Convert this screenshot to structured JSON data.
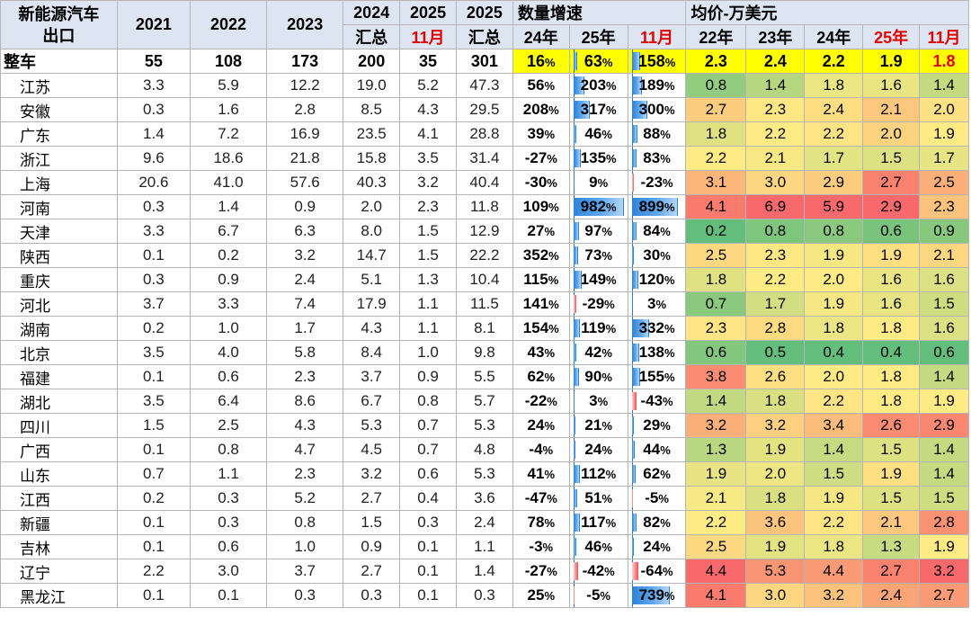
{
  "header": {
    "title_line1": "新能源汽车",
    "title_line2": "出口",
    "y2021": "2021",
    "y2022": "2022",
    "y2023": "2023",
    "y2024": "2024",
    "y2024_sub": "汇总",
    "y2025m": "2025",
    "y2025m_sub": "11月",
    "y2025t": "2025",
    "y2025t_sub": "汇总",
    "growth_group": "数量增速",
    "g24": "24年",
    "g25": "25年",
    "gm": "11月",
    "price_group": "均价-万美元",
    "p22": "22年",
    "p23": "23年",
    "p24": "24年",
    "p25": "25年",
    "pm": "11月"
  },
  "total": {
    "name": "整车",
    "v2021": "55",
    "v2022": "108",
    "v2023": "173",
    "v2024": "200",
    "v2025m": "35",
    "v2025t": "301",
    "g24": "16%",
    "g25": "63%",
    "gm": "158%",
    "p22": "2.3",
    "p23": "2.4",
    "p24": "2.2",
    "p25": "1.9",
    "pm": "1.8"
  },
  "rows": [
    {
      "name": "江苏",
      "v2021": "3.3",
      "v2022": "5.9",
      "v2023": "12.2",
      "v2024": "19.0",
      "v2025m": "5.2",
      "v2025t": "47.3",
      "g24": "56%",
      "g25": "203%",
      "gm": "189%",
      "p22": "0.8",
      "p23": "1.4",
      "p24": "1.8",
      "p25": "1.6",
      "pm": "1.4"
    },
    {
      "name": "安徽",
      "v2021": "0.3",
      "v2022": "1.6",
      "v2023": "2.8",
      "v2024": "8.5",
      "v2025m": "4.3",
      "v2025t": "29.5",
      "g24": "208%",
      "g25": "317%",
      "gm": "300%",
      "p22": "2.7",
      "p23": "2.3",
      "p24": "2.4",
      "p25": "2.1",
      "pm": "2.0"
    },
    {
      "name": "广东",
      "v2021": "1.4",
      "v2022": "7.2",
      "v2023": "16.9",
      "v2024": "23.5",
      "v2025m": "4.1",
      "v2025t": "28.8",
      "g24": "39%",
      "g25": "46%",
      "gm": "88%",
      "p22": "1.8",
      "p23": "2.2",
      "p24": "2.2",
      "p25": "2.0",
      "pm": "1.9"
    },
    {
      "name": "浙江",
      "v2021": "9.6",
      "v2022": "18.6",
      "v2023": "21.8",
      "v2024": "15.8",
      "v2025m": "3.5",
      "v2025t": "31.4",
      "g24": "-27%",
      "g25": "135%",
      "gm": "83%",
      "p22": "2.2",
      "p23": "2.1",
      "p24": "1.7",
      "p25": "1.5",
      "pm": "1.7"
    },
    {
      "name": "上海",
      "v2021": "20.6",
      "v2022": "41.0",
      "v2023": "57.6",
      "v2024": "40.3",
      "v2025m": "3.2",
      "v2025t": "40.4",
      "g24": "-30%",
      "g25": "9%",
      "gm": "-23%",
      "p22": "3.1",
      "p23": "3.0",
      "p24": "2.9",
      "p25": "2.7",
      "pm": "2.5"
    },
    {
      "name": "河南",
      "v2021": "0.3",
      "v2022": "1.4",
      "v2023": "0.9",
      "v2024": "2.0",
      "v2025m": "2.3",
      "v2025t": "11.8",
      "g24": "109%",
      "g25": "982%",
      "gm": "899%",
      "p22": "4.1",
      "p23": "6.9",
      "p24": "5.9",
      "p25": "2.9",
      "pm": "2.3"
    },
    {
      "name": "天津",
      "v2021": "3.3",
      "v2022": "6.7",
      "v2023": "6.3",
      "v2024": "8.0",
      "v2025m": "1.5",
      "v2025t": "12.9",
      "g24": "27%",
      "g25": "97%",
      "gm": "84%",
      "p22": "0.2",
      "p23": "0.8",
      "p24": "0.8",
      "p25": "0.6",
      "pm": "0.9"
    },
    {
      "name": "陕西",
      "v2021": "0.1",
      "v2022": "0.2",
      "v2023": "3.2",
      "v2024": "14.7",
      "v2025m": "1.5",
      "v2025t": "22.2",
      "g24": "352%",
      "g25": "73%",
      "gm": "30%",
      "p22": "2.5",
      "p23": "2.3",
      "p24": "1.9",
      "p25": "1.9",
      "pm": "2.1"
    },
    {
      "name": "重庆",
      "v2021": "0.3",
      "v2022": "0.9",
      "v2023": "2.4",
      "v2024": "5.1",
      "v2025m": "1.3",
      "v2025t": "10.4",
      "g24": "115%",
      "g25": "149%",
      "gm": "120%",
      "p22": "1.8",
      "p23": "2.2",
      "p24": "2.0",
      "p25": "1.6",
      "pm": "1.6"
    },
    {
      "name": "河北",
      "v2021": "3.7",
      "v2022": "3.3",
      "v2023": "7.4",
      "v2024": "17.9",
      "v2025m": "1.1",
      "v2025t": "11.5",
      "g24": "141%",
      "g25": "-29%",
      "gm": "3%",
      "p22": "0.7",
      "p23": "1.7",
      "p24": "1.9",
      "p25": "1.6",
      "pm": "1.5"
    },
    {
      "name": "湖南",
      "v2021": "0.2",
      "v2022": "1.0",
      "v2023": "1.7",
      "v2024": "4.3",
      "v2025m": "1.1",
      "v2025t": "8.1",
      "g24": "154%",
      "g25": "119%",
      "gm": "332%",
      "p22": "2.3",
      "p23": "2.8",
      "p24": "1.8",
      "p25": "1.8",
      "pm": "1.6"
    },
    {
      "name": "北京",
      "v2021": "3.5",
      "v2022": "4.0",
      "v2023": "5.8",
      "v2024": "8.4",
      "v2025m": "1.0",
      "v2025t": "9.8",
      "g24": "43%",
      "g25": "42%",
      "gm": "138%",
      "p22": "0.6",
      "p23": "0.5",
      "p24": "0.4",
      "p25": "0.4",
      "pm": "0.6"
    },
    {
      "name": "福建",
      "v2021": "0.1",
      "v2022": "0.6",
      "v2023": "2.3",
      "v2024": "3.7",
      "v2025m": "0.9",
      "v2025t": "5.5",
      "g24": "62%",
      "g25": "90%",
      "gm": "155%",
      "p22": "3.8",
      "p23": "2.6",
      "p24": "2.0",
      "p25": "1.8",
      "pm": "1.4"
    },
    {
      "name": "湖北",
      "v2021": "3.5",
      "v2022": "6.4",
      "v2023": "8.6",
      "v2024": "6.7",
      "v2025m": "0.8",
      "v2025t": "5.7",
      "g24": "-22%",
      "g25": "3%",
      "gm": "-43%",
      "p22": "1.4",
      "p23": "1.8",
      "p24": "2.2",
      "p25": "1.8",
      "pm": "1.9"
    },
    {
      "name": "四川",
      "v2021": "1.5",
      "v2022": "2.5",
      "v2023": "4.3",
      "v2024": "5.3",
      "v2025m": "0.7",
      "v2025t": "5.3",
      "g24": "24%",
      "g25": "21%",
      "gm": "29%",
      "p22": "3.2",
      "p23": "3.2",
      "p24": "3.4",
      "p25": "2.6",
      "pm": "2.9"
    },
    {
      "name": "广西",
      "v2021": "0.1",
      "v2022": "0.8",
      "v2023": "4.7",
      "v2024": "4.5",
      "v2025m": "0.7",
      "v2025t": "4.8",
      "g24": "-4%",
      "g25": "24%",
      "gm": "44%",
      "p22": "1.3",
      "p23": "1.9",
      "p24": "1.4",
      "p25": "1.5",
      "pm": "1.4"
    },
    {
      "name": "山东",
      "v2021": "0.7",
      "v2022": "1.1",
      "v2023": "2.3",
      "v2024": "3.2",
      "v2025m": "0.6",
      "v2025t": "5.3",
      "g24": "41%",
      "g25": "112%",
      "gm": "62%",
      "p22": "1.9",
      "p23": "2.0",
      "p24": "1.5",
      "p25": "1.9",
      "pm": "1.4"
    },
    {
      "name": "江西",
      "v2021": "0.2",
      "v2022": "0.3",
      "v2023": "5.2",
      "v2024": "2.7",
      "v2025m": "0.4",
      "v2025t": "3.6",
      "g24": "-47%",
      "g25": "51%",
      "gm": "-5%",
      "p22": "2.1",
      "p23": "1.8",
      "p24": "1.9",
      "p25": "1.5",
      "pm": "1.5"
    },
    {
      "name": "新疆",
      "v2021": "0.1",
      "v2022": "0.3",
      "v2023": "0.8",
      "v2024": "1.5",
      "v2025m": "0.3",
      "v2025t": "2.4",
      "g24": "78%",
      "g25": "117%",
      "gm": "82%",
      "p22": "2.2",
      "p23": "3.6",
      "p24": "2.2",
      "p25": "2.1",
      "pm": "2.8"
    },
    {
      "name": "吉林",
      "v2021": "0.1",
      "v2022": "0.6",
      "v2023": "1.0",
      "v2024": "0.9",
      "v2025m": "0.1",
      "v2025t": "1.1",
      "g24": "-3%",
      "g25": "46%",
      "gm": "24%",
      "p22": "2.5",
      "p23": "1.9",
      "p24": "1.8",
      "p25": "1.3",
      "pm": "1.9"
    },
    {
      "name": "辽宁",
      "v2021": "2.2",
      "v2022": "3.0",
      "v2023": "3.7",
      "v2024": "2.7",
      "v2025m": "0.1",
      "v2025t": "1.4",
      "g24": "-27%",
      "g25": "-42%",
      "gm": "-64%",
      "p22": "4.4",
      "p23": "5.3",
      "p24": "4.4",
      "p25": "2.7",
      "pm": "3.2"
    },
    {
      "name": "黑龙江",
      "v2021": "0.1",
      "v2022": "0.1",
      "v2023": "0.3",
      "v2024": "0.3",
      "v2025m": "0.1",
      "v2025t": "0.3",
      "g24": "25%",
      "g25": "-5%",
      "gm": "739%",
      "p22": "4.1",
      "p23": "3.0",
      "p24": "3.2",
      "p25": "2.4",
      "pm": "2.7"
    }
  ],
  "colors": {
    "header_bg": "#dce5f1",
    "highlight_yellow": "#ffff00",
    "header_red": "#e00000",
    "bar_blue": "#2f83d8",
    "bar_red": "#f05050",
    "scale_low": "#63be7b",
    "scale_mid": "#ffeb84",
    "scale_high": "#f8696b"
  }
}
